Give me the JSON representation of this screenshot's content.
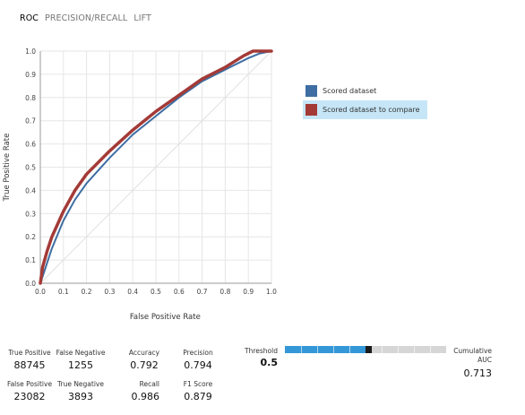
{
  "tabs": [
    {
      "label": "ROC",
      "active": true
    },
    {
      "label": "PRECISION/RECALL",
      "active": false
    },
    {
      "label": "LIFT",
      "active": false
    }
  ],
  "legend": {
    "items": [
      {
        "label": "Scored dataset",
        "color": "#3e6ea3",
        "selected": false
      },
      {
        "label": "Scored dataset to compare",
        "color": "#a33a37",
        "selected": true
      }
    ]
  },
  "chart_data": {
    "type": "line",
    "xlabel": "False Positive Rate",
    "ylabel": "True Positive Rate",
    "xlim": [
      0,
      1
    ],
    "ylim": [
      0,
      1
    ],
    "x_ticks": [
      "0.0",
      "0.1",
      "0.2",
      "0.3",
      "0.4",
      "0.5",
      "0.6",
      "0.7",
      "0.8",
      "0.9",
      "1.0"
    ],
    "y_ticks": [
      "0.0",
      "0.1",
      "0.2",
      "0.3",
      "0.4",
      "0.5",
      "0.6",
      "0.7",
      "0.8",
      "0.9",
      "1.0"
    ],
    "grid": true,
    "diagonal_reference": true,
    "legend_position": "right",
    "series": [
      {
        "name": "Scored dataset",
        "color": "#3e6ea3",
        "points": [
          [
            0,
            0
          ],
          [
            0.02,
            0.06
          ],
          [
            0.05,
            0.15
          ],
          [
            0.1,
            0.27
          ],
          [
            0.15,
            0.36
          ],
          [
            0.2,
            0.43
          ],
          [
            0.3,
            0.54
          ],
          [
            0.4,
            0.64
          ],
          [
            0.5,
            0.72
          ],
          [
            0.6,
            0.8
          ],
          [
            0.7,
            0.87
          ],
          [
            0.8,
            0.92
          ],
          [
            0.9,
            0.97
          ],
          [
            0.95,
            0.99
          ],
          [
            1.0,
            1.0
          ]
        ]
      },
      {
        "name": "Scored dataset to compare",
        "color": "#a33a37",
        "points": [
          [
            0,
            0
          ],
          [
            0.01,
            0.07
          ],
          [
            0.03,
            0.14
          ],
          [
            0.05,
            0.2
          ],
          [
            0.1,
            0.31
          ],
          [
            0.15,
            0.4
          ],
          [
            0.2,
            0.47
          ],
          [
            0.3,
            0.57
          ],
          [
            0.4,
            0.66
          ],
          [
            0.5,
            0.74
          ],
          [
            0.6,
            0.81
          ],
          [
            0.7,
            0.88
          ],
          [
            0.8,
            0.93
          ],
          [
            0.88,
            0.98
          ],
          [
            0.92,
            1.0
          ],
          [
            1.0,
            1.0
          ]
        ]
      }
    ]
  },
  "stats": {
    "true_positive": {
      "label": "True Positive",
      "value": "88745"
    },
    "false_negative": {
      "label": "False Negative",
      "value": "1255"
    },
    "accuracy": {
      "label": "Accuracy",
      "value": "0.792"
    },
    "precision": {
      "label": "Precision",
      "value": "0.794"
    },
    "false_positive": {
      "label": "False Positive",
      "value": "23082"
    },
    "true_negative": {
      "label": "True Negative",
      "value": "3893"
    },
    "recall": {
      "label": "Recall",
      "value": "0.986"
    },
    "f1": {
      "label": "F1 Score",
      "value": "0.879"
    }
  },
  "threshold": {
    "label": "Threshold",
    "value": "0.5",
    "slider_position": 0.5
  },
  "cumulative_auc": {
    "label_line1": "Cumulative",
    "label_line2": "AUC",
    "value": "0.713"
  }
}
